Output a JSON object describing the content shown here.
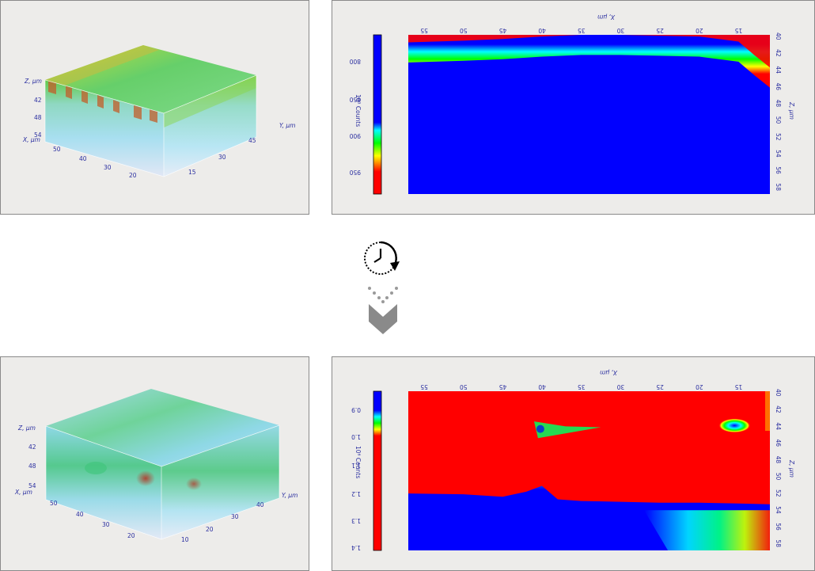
{
  "chart_data": [
    {
      "type": "3d-volume",
      "panel": "before",
      "axes": {
        "z": {
          "label": "Z, µm",
          "ticks": [
            "42",
            "48",
            "54"
          ]
        },
        "x": {
          "label": "X, µm",
          "ticks": [
            "50",
            "40",
            "30",
            "20"
          ]
        },
        "y": {
          "label": "Y, µm",
          "ticks": [
            "15",
            "30",
            "45"
          ]
        }
      },
      "colors": {
        "top": "#7ccf3a",
        "hot": "#c8652a",
        "body": "#7fd3e8",
        "deep": "#dfe6f5"
      }
    },
    {
      "type": "heatmap",
      "panel": "before",
      "title": "",
      "xlabel": "X, µm",
      "ylabel": "Z, µm",
      "x_ticks": [
        "55",
        "50",
        "45",
        "40",
        "35",
        "30",
        "25",
        "20",
        "15"
      ],
      "z_ticks": [
        "40",
        "42",
        "44",
        "46",
        "48",
        "50",
        "52",
        "54",
        "56",
        "58"
      ],
      "xlim": [
        57,
        11
      ],
      "zlim": [
        40,
        59
      ],
      "colorbar": {
        "label": "10³ Counts",
        "ticks": [
          "800",
          "850",
          "900",
          "950"
        ]
      },
      "boundary_profile": {
        "x": [
          57,
          50,
          45,
          40,
          35,
          30,
          25,
          20,
          15,
          13,
          11
        ],
        "z": [
          41.5,
          41.3,
          41.1,
          40.8,
          40.6,
          40.6,
          40.7,
          40.8,
          41.4,
          43.0,
          44.5
        ]
      }
    },
    {
      "type": "3d-volume",
      "panel": "after",
      "axes": {
        "z": {
          "label": "Z, µm",
          "ticks": [
            "42",
            "48",
            "54"
          ]
        },
        "x": {
          "label": "X, µm",
          "ticks": [
            "50",
            "40",
            "30",
            "20"
          ]
        },
        "y": {
          "label": "Y, µm",
          "ticks": [
            "10",
            "20",
            "30",
            "40"
          ]
        }
      },
      "colors": {
        "top": "#8fd6e6",
        "mid": "#4fc9a0",
        "hot": "#b8402a",
        "deep": "#dfe6f5"
      }
    },
    {
      "type": "heatmap",
      "panel": "after",
      "title": "",
      "xlabel": "X, µm",
      "ylabel": "Z, µm",
      "x_ticks": [
        "55",
        "50",
        "45",
        "40",
        "35",
        "30",
        "25",
        "20",
        "15"
      ],
      "z_ticks": [
        "40",
        "42",
        "44",
        "46",
        "48",
        "50",
        "52",
        "54",
        "56",
        "58"
      ],
      "xlim": [
        57,
        11
      ],
      "zlim": [
        40,
        59
      ],
      "colorbar": {
        "label": "10⁶ Counts",
        "ticks": [
          "0.9",
          "1.0",
          "1.1",
          "1.2",
          "1.3",
          "1.4"
        ]
      },
      "boundary_profile": {
        "x": [
          57,
          50,
          45,
          42,
          40,
          38,
          35,
          30,
          25,
          20,
          15,
          11
        ],
        "z": [
          52.5,
          52.6,
          52.9,
          52.3,
          51.6,
          53.2,
          53.4,
          53.5,
          53.6,
          53.6,
          53.7,
          53.8
        ]
      }
    }
  ],
  "connector": {
    "icons": [
      "clock-rotate-icon",
      "dots-arrow-icon",
      "chevron-down-icon"
    ],
    "color": "#8a8a8a"
  }
}
